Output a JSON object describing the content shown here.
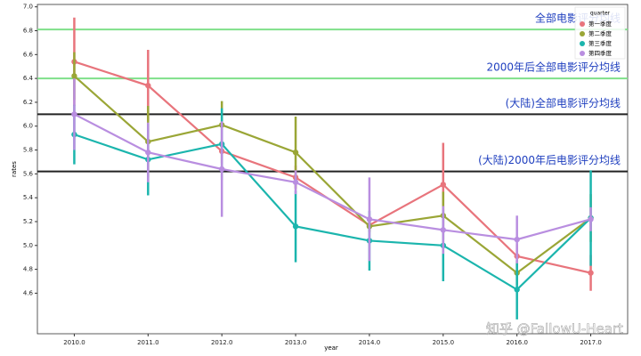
{
  "chart_data": {
    "type": "pointplot",
    "x_label": "year",
    "y_label": "rates",
    "categories": [
      "2010.0",
      "2011.0",
      "2012.0",
      "2013.0",
      "2014.0",
      "2015.0",
      "2016.0",
      "2017.0"
    ],
    "ylim": [
      4.26,
      7.02
    ],
    "yticks": [
      {
        "value": 4.6,
        "label": "4.6"
      },
      {
        "value": 4.8,
        "label": "4.8"
      },
      {
        "value": 5.0,
        "label": "5.0"
      },
      {
        "value": 5.2,
        "label": "5.2"
      },
      {
        "value": 5.4,
        "label": "5.4"
      },
      {
        "value": 5.6,
        "label": "5.6"
      },
      {
        "value": 5.8,
        "label": "5.8"
      },
      {
        "value": 6.0,
        "label": "6.0"
      },
      {
        "value": 6.2,
        "label": "6.2"
      },
      {
        "value": 6.4,
        "label": "6.4"
      },
      {
        "value": 6.6,
        "label": "6.6"
      },
      {
        "value": 6.8,
        "label": "6.8"
      },
      {
        "value": 7.0,
        "label": "7.0"
      }
    ],
    "legend_title": "quarter",
    "legend_position": "upper right",
    "reference_lines": [
      {
        "value": 6.81,
        "label": "全部电影评分均线",
        "color": "#7fe08a"
      },
      {
        "value": 6.4,
        "label": "2000年后全部电影评分均线",
        "color": "#7fe08a"
      },
      {
        "value": 6.1,
        "label": "(大陆)全部电影评分均线",
        "color": "#222222"
      },
      {
        "value": 5.62,
        "label": "(大陆)2000年后电影评分均线",
        "color": "#222222"
      }
    ],
    "series": [
      {
        "name": "第一季度",
        "color": "#e8747c",
        "values": [
          6.54,
          6.34,
          5.79,
          5.57,
          5.17,
          5.51,
          4.91,
          4.77
        ],
        "errors": [
          0.37,
          0.3,
          0.1,
          0.1,
          0.05,
          0.35,
          0.1,
          0.15
        ]
      },
      {
        "name": "第二季度",
        "color": "#9aa636",
        "values": [
          6.42,
          5.87,
          6.01,
          5.78,
          5.16,
          5.25,
          4.77,
          5.23
        ],
        "errors": [
          0.2,
          0.3,
          0.2,
          0.3,
          0.05,
          0.2,
          0.1,
          0.2
        ]
      },
      {
        "name": "第三季度",
        "color": "#1bb5ad",
        "values": [
          5.93,
          5.72,
          5.85,
          5.16,
          5.04,
          5.0,
          4.63,
          5.23
        ],
        "errors": [
          0.25,
          0.3,
          0.3,
          0.3,
          0.25,
          0.3,
          0.25,
          0.4
        ]
      },
      {
        "name": "第四季度",
        "color": "#b98ee0",
        "values": [
          6.1,
          5.78,
          5.64,
          5.53,
          5.22,
          5.13,
          5.05,
          5.22
        ],
        "errors": [
          0.3,
          0.25,
          0.4,
          0.1,
          0.35,
          0.2,
          0.2,
          0.1
        ]
      }
    ],
    "watermark": "知乎 @FallowU-Heart"
  }
}
